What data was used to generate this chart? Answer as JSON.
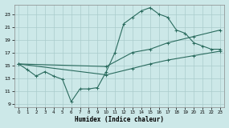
{
  "xlabel": "Humidex (Indice chaleur)",
  "background_color": "#cce8e8",
  "grid_color": "#aacccc",
  "line_color": "#2a6b5e",
  "xlim": [
    -0.5,
    23.5
  ],
  "ylim": [
    8.5,
    24.5
  ],
  "yticks": [
    9,
    11,
    13,
    15,
    17,
    19,
    21,
    23
  ],
  "xticks": [
    0,
    1,
    2,
    3,
    4,
    5,
    6,
    7,
    8,
    9,
    10,
    11,
    12,
    13,
    14,
    15,
    16,
    17,
    18,
    19,
    20,
    21,
    22,
    23
  ],
  "series1_x": [
    0,
    1,
    2,
    3,
    4,
    5,
    6,
    7,
    8,
    9,
    10,
    11,
    12,
    13,
    14,
    15,
    16,
    17,
    18,
    19,
    20,
    21,
    22,
    23
  ],
  "series1_y": [
    15.2,
    14.3,
    13.3,
    14.0,
    13.3,
    12.8,
    9.3,
    11.3,
    11.3,
    11.5,
    14.0,
    17.0,
    21.5,
    22.5,
    23.5,
    24.0,
    23.0,
    22.5,
    20.5,
    20.0,
    18.5,
    18.0,
    17.5,
    17.5
  ],
  "series2_x": [
    0,
    10,
    13,
    15,
    17,
    20,
    23
  ],
  "series2_y": [
    15.2,
    14.8,
    17.0,
    17.5,
    18.5,
    19.5,
    20.5
  ],
  "series3_x": [
    0,
    10,
    13,
    15,
    17,
    20,
    23
  ],
  "series3_y": [
    15.2,
    13.5,
    14.5,
    15.2,
    15.8,
    16.5,
    17.2
  ]
}
